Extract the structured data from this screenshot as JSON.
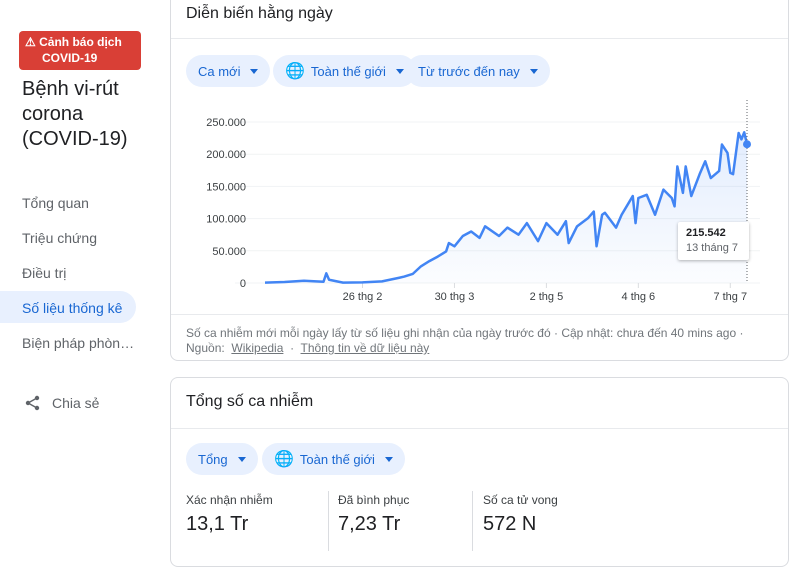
{
  "sidebar": {
    "alert": {
      "line1": "Cảnh báo dịch",
      "line2": "COVID-19",
      "icon": "warning-icon",
      "color": "#d93f36"
    },
    "title": "Bệnh vi-rút corona (COVID-19)",
    "nav": [
      {
        "label": "Tổng quan"
      },
      {
        "label": "Triệu chứng"
      },
      {
        "label": "Điều trị"
      },
      {
        "label": "Số liệu thống kê",
        "selected": true
      },
      {
        "label": "Biện pháp phòn…"
      }
    ],
    "share": "Chia sẻ"
  },
  "daily": {
    "title": "Diễn biến hằng ngày",
    "chips": [
      "Ca mới",
      "Toàn thế giới",
      "Từ trước đến nay"
    ],
    "tooltip": {
      "value": "215.542",
      "date": "13 tháng 7"
    },
    "footer": {
      "text": "Số ca nhiễm mới mỗi ngày lấy từ số liệu ghi nhận của ngày trước đó · Cập nhật: chưa đến 40 mins ago ·",
      "source_label": "Nguồn:",
      "source_link": "Wikipedia",
      "info_link": "Thông tin về dữ liệu này"
    }
  },
  "chart_data": {
    "type": "area",
    "ylim": [
      0,
      250000
    ],
    "y_ticks": [
      {
        "v": 0,
        "label": "0"
      },
      {
        "v": 50000,
        "label": "50.000"
      },
      {
        "v": 100000,
        "label": "100.000"
      },
      {
        "v": 150000,
        "label": "150.000"
      },
      {
        "v": 200000,
        "label": "200.000"
      },
      {
        "v": 250000,
        "label": "250.000"
      }
    ],
    "x_ticks": [
      {
        "date": "2020-02-26",
        "label": "26 thg 2"
      },
      {
        "date": "2020-03-30",
        "label": "30 thg 3"
      },
      {
        "date": "2020-05-02",
        "label": "2 thg 5"
      },
      {
        "date": "2020-06-04",
        "label": "4 thg 6"
      },
      {
        "date": "2020-07-07",
        "label": "7 thg 7"
      }
    ],
    "xlim": [
      "2020-01-22",
      "2020-07-13"
    ],
    "color": "#4285f4",
    "points": [
      [
        "2020-01-22",
        600
      ],
      [
        "2020-01-29",
        1500
      ],
      [
        "2020-02-05",
        3500
      ],
      [
        "2020-02-12",
        2000
      ],
      [
        "2020-02-13",
        15000
      ],
      [
        "2020-02-14",
        5000
      ],
      [
        "2020-02-19",
        600
      ],
      [
        "2020-02-26",
        900
      ],
      [
        "2020-03-04",
        2500
      ],
      [
        "2020-03-10",
        8000
      ],
      [
        "2020-03-12",
        10000
      ],
      [
        "2020-03-15",
        14000
      ],
      [
        "2020-03-18",
        26000
      ],
      [
        "2020-03-21",
        34000
      ],
      [
        "2020-03-24",
        41000
      ],
      [
        "2020-03-27",
        49000
      ],
      [
        "2020-03-28",
        62000
      ],
      [
        "2020-03-30",
        57000
      ],
      [
        "2020-04-02",
        73000
      ],
      [
        "2020-04-05",
        80000
      ],
      [
        "2020-04-08",
        70000
      ],
      [
        "2020-04-10",
        88000
      ],
      [
        "2020-04-15",
        73000
      ],
      [
        "2020-04-18",
        86000
      ],
      [
        "2020-04-22",
        75000
      ],
      [
        "2020-04-25",
        93000
      ],
      [
        "2020-04-29",
        65000
      ],
      [
        "2020-05-02",
        93000
      ],
      [
        "2020-05-06",
        75000
      ],
      [
        "2020-05-09",
        96000
      ],
      [
        "2020-05-10",
        62000
      ],
      [
        "2020-05-13",
        88000
      ],
      [
        "2020-05-17",
        101000
      ],
      [
        "2020-05-19",
        111000
      ],
      [
        "2020-05-20",
        57000
      ],
      [
        "2020-05-22",
        106000
      ],
      [
        "2020-05-23",
        109000
      ],
      [
        "2020-05-27",
        86000
      ],
      [
        "2020-05-29",
        106000
      ],
      [
        "2020-06-02",
        135000
      ],
      [
        "2020-06-03",
        93000
      ],
      [
        "2020-06-04",
        132000
      ],
      [
        "2020-06-07",
        137000
      ],
      [
        "2020-06-10",
        106000
      ],
      [
        "2020-06-13",
        145000
      ],
      [
        "2020-06-16",
        132000
      ],
      [
        "2020-06-17",
        119000
      ],
      [
        "2020-06-18",
        181000
      ],
      [
        "2020-06-20",
        140000
      ],
      [
        "2020-06-21",
        181000
      ],
      [
        "2020-06-23",
        135000
      ],
      [
        "2020-06-26",
        169000
      ],
      [
        "2020-06-28",
        189000
      ],
      [
        "2020-06-30",
        163000
      ],
      [
        "2020-07-03",
        174000
      ],
      [
        "2020-07-04",
        215000
      ],
      [
        "2020-07-06",
        202000
      ],
      [
        "2020-07-07",
        171000
      ],
      [
        "2020-07-08",
        169000
      ],
      [
        "2020-07-10",
        233000
      ],
      [
        "2020-07-11",
        223000
      ],
      [
        "2020-07-12",
        234000
      ],
      [
        "2020-07-13",
        215542
      ]
    ]
  },
  "total": {
    "title": "Tổng số ca nhiễm",
    "chips": [
      "Tổng",
      "Toàn thế giới"
    ],
    "stats": [
      {
        "label": "Xác nhận nhiễm",
        "value": "13,1 Tr"
      },
      {
        "label": "Đã bình phục",
        "value": "7,23 Tr"
      },
      {
        "label": "Số ca tử vong",
        "value": "572 N"
      }
    ]
  }
}
